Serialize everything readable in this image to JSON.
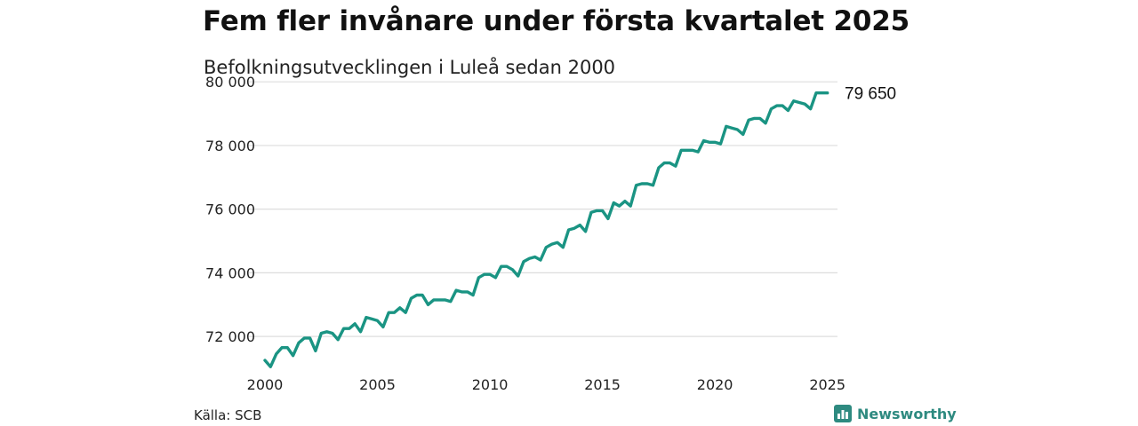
{
  "title": "Fem fler invånare under första kvartalet 2025",
  "subtitle": "Befolkningsutvecklingen i Luleå sedan 2000",
  "source": "Källa: SCB",
  "brand": "Newsworthy",
  "colors": {
    "line": "#1a9483",
    "grid": "#dddddd",
    "brand": "#2e8a80"
  },
  "chart_data": {
    "type": "line",
    "title": "Fem fler invånare under första kvartalet 2025",
    "subtitle": "Befolkningsutvecklingen i Luleå sedan 2000",
    "xlabel": "",
    "ylabel": "",
    "xlim": [
      2000,
      2025.25
    ],
    "ylim": [
      71000,
      80200
    ],
    "grid": "horizontal",
    "x_ticks": [
      2000,
      2005,
      2010,
      2015,
      2020,
      2025
    ],
    "x_tick_labels": [
      "2000",
      "2005",
      "2010",
      "2015",
      "2020",
      "2025"
    ],
    "y_ticks": [
      72000,
      74000,
      76000,
      78000,
      80000
    ],
    "y_tick_labels": [
      "72 000",
      "74 000",
      "76 000",
      "78 000",
      "80 000"
    ],
    "end_label": "79 650",
    "series": [
      {
        "x": [
          2000.0,
          2000.25,
          2000.5,
          2000.75,
          2001.0,
          2001.25,
          2001.5,
          2001.75,
          2002.0,
          2002.25,
          2002.5,
          2002.75,
          2003.0,
          2003.25,
          2003.5,
          2003.75,
          2004.0,
          2004.25,
          2004.5,
          2004.75,
          2005.0,
          2005.25,
          2005.5,
          2005.75,
          2006.0,
          2006.25,
          2006.5,
          2006.75,
          2007.0,
          2007.25,
          2007.5,
          2007.75,
          2008.0,
          2008.25,
          2008.5,
          2008.75,
          2009.0,
          2009.25,
          2009.5,
          2009.75,
          2010.0,
          2010.25,
          2010.5,
          2010.75,
          2011.0,
          2011.25,
          2011.5,
          2011.75,
          2012.0,
          2012.25,
          2012.5,
          2012.75,
          2013.0,
          2013.25,
          2013.5,
          2013.75,
          2014.0,
          2014.25,
          2014.5,
          2014.75,
          2015.0,
          2015.25,
          2015.5,
          2015.75,
          2016.0,
          2016.25,
          2016.5,
          2016.75,
          2017.0,
          2017.25,
          2017.5,
          2017.75,
          2018.0,
          2018.25,
          2018.5,
          2018.75,
          2019.0,
          2019.25,
          2019.5,
          2019.75,
          2020.0,
          2020.25,
          2020.5,
          2020.75,
          2021.0,
          2021.25,
          2021.5,
          2021.75,
          2022.0,
          2022.25,
          2022.5,
          2022.75,
          2023.0,
          2023.25,
          2023.5,
          2023.75,
          2024.0,
          2024.25,
          2024.5,
          2024.75,
          2025.0
        ],
        "values": [
          71250,
          71050,
          71450,
          71650,
          71650,
          71400,
          71800,
          71950,
          71950,
          71550,
          72100,
          72150,
          72100,
          71900,
          72250,
          72250,
          72400,
          72150,
          72600,
          72550,
          72500,
          72300,
          72750,
          72750,
          72900,
          72750,
          73200,
          73300,
          73300,
          73000,
          73150,
          73150,
          73150,
          73100,
          73450,
          73400,
          73400,
          73300,
          73850,
          73950,
          73950,
          73850,
          74200,
          74200,
          74100,
          73900,
          74350,
          74450,
          74500,
          74400,
          74800,
          74900,
          74950,
          74800,
          75350,
          75400,
          75500,
          75300,
          75900,
          75950,
          75950,
          75700,
          76200,
          76100,
          76250,
          76100,
          76750,
          76800,
          76800,
          76750,
          77300,
          77450,
          77450,
          77350,
          77850,
          77850,
          77850,
          77800,
          78150,
          78100,
          78100,
          78050,
          78600,
          78550,
          78500,
          78350,
          78800,
          78850,
          78850,
          78700,
          79150,
          79250,
          79250,
          79100,
          79400,
          79350,
          79300,
          79150,
          79650,
          79650,
          79650
        ]
      }
    ]
  }
}
